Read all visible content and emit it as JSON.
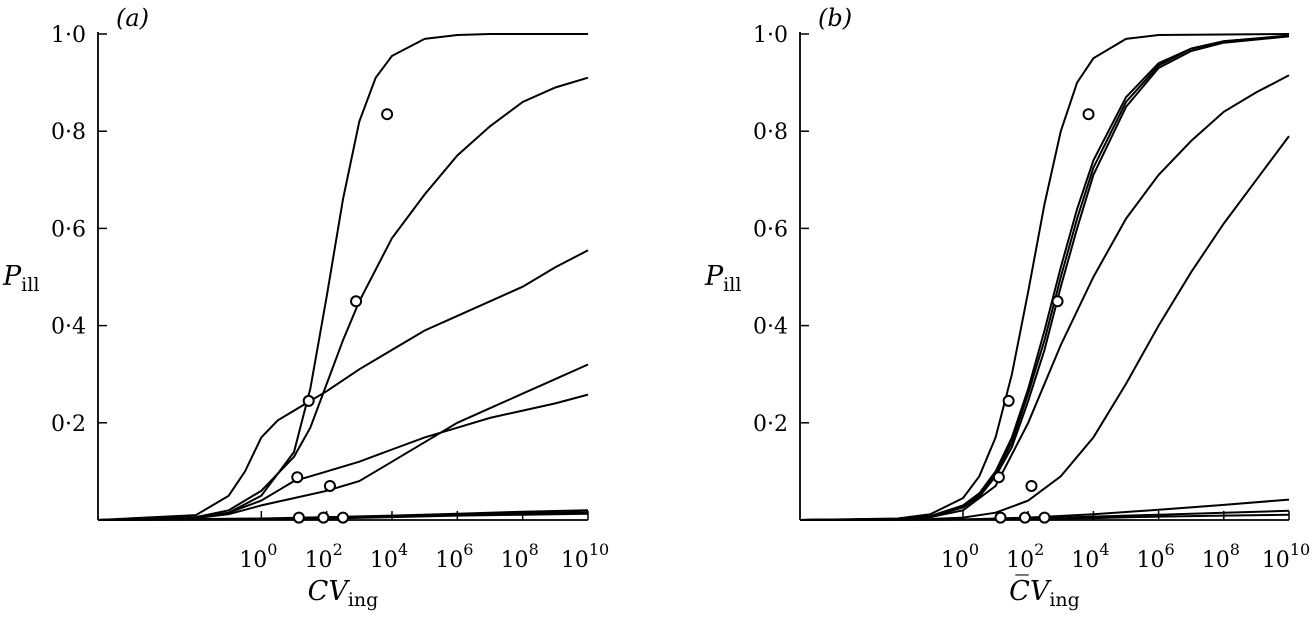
{
  "chart_data": [
    {
      "type": "line",
      "panel_label": "(a)",
      "xlabel": "CV",
      "xlabel_sub": "ing",
      "ylabel": "P",
      "ylabel_sub": "ill",
      "xscale": "log",
      "xlim": [
        1e-05,
        10000000000.0
      ],
      "ylim": [
        0,
        1
      ],
      "y_ticks": [
        {
          "v": 0.2,
          "label": "0·2"
        },
        {
          "v": 0.4,
          "label": "0·4"
        },
        {
          "v": 0.6,
          "label": "0·6"
        },
        {
          "v": 0.8,
          "label": "0·8"
        },
        {
          "v": 1.0,
          "label": "1·0"
        }
      ],
      "x_ticks": [
        {
          "exp": 0,
          "base": "10",
          "sup": "0"
        },
        {
          "exp": 2,
          "base": "10",
          "sup": "2"
        },
        {
          "exp": 4,
          "base": "10",
          "sup": "4"
        },
        {
          "exp": 6,
          "base": "10",
          "sup": "6"
        },
        {
          "exp": 8,
          "base": "10",
          "sup": "8"
        },
        {
          "exp": 10,
          "base": "10",
          "sup": "10"
        }
      ],
      "series": [
        {
          "x_log10": [
            -5,
            -2,
            -1,
            0,
            1,
            1.5,
            2,
            2.5,
            3,
            3.5,
            4,
            5,
            6,
            7,
            8,
            10
          ],
          "y": [
            0,
            0.004,
            0.015,
            0.05,
            0.14,
            0.27,
            0.46,
            0.66,
            0.82,
            0.91,
            0.955,
            0.99,
            0.998,
            1,
            1,
            1
          ]
        },
        {
          "x_log10": [
            -5,
            -2,
            -1,
            0,
            1,
            1.5,
            2,
            2.5,
            3,
            4,
            5,
            6,
            7,
            8,
            9,
            10
          ],
          "y": [
            0,
            0.006,
            0.02,
            0.06,
            0.13,
            0.19,
            0.28,
            0.37,
            0.45,
            0.58,
            0.67,
            0.75,
            0.81,
            0.86,
            0.89,
            0.91
          ]
        },
        {
          "x_log10": [
            -5,
            -2,
            -1,
            -0.5,
            0,
            0.5,
            1,
            1.5,
            2,
            3,
            4,
            5,
            6,
            7,
            8,
            9,
            10
          ],
          "y": [
            0,
            0.01,
            0.05,
            0.1,
            0.17,
            0.205,
            0.225,
            0.245,
            0.265,
            0.31,
            0.35,
            0.39,
            0.42,
            0.45,
            0.48,
            0.52,
            0.555
          ]
        },
        {
          "x_log10": [
            -5,
            -2,
            -1,
            0,
            0.5,
            1,
            1.5,
            2,
            3,
            4,
            5,
            6,
            7,
            8,
            9,
            10
          ],
          "y": [
            0,
            0.005,
            0.015,
            0.04,
            0.06,
            0.08,
            0.09,
            0.1,
            0.12,
            0.145,
            0.17,
            0.19,
            0.21,
            0.225,
            0.24,
            0.258
          ]
        },
        {
          "x_log10": [
            -5,
            -2,
            -1,
            0,
            1,
            2,
            3,
            4,
            5,
            6,
            7,
            8,
            9,
            10
          ],
          "y": [
            0,
            0.004,
            0.012,
            0.03,
            0.045,
            0.06,
            0.08,
            0.12,
            0.16,
            0.2,
            0.23,
            0.26,
            0.29,
            0.32
          ]
        },
        {
          "x_log10": [
            -5,
            0,
            2,
            4,
            6,
            8,
            10
          ],
          "y": [
            0,
            0.001,
            0.003,
            0.006,
            0.009,
            0.011,
            0.013
          ]
        },
        {
          "x_log10": [
            -5,
            0,
            2,
            4,
            6,
            8,
            10
          ],
          "y": [
            0,
            0.002,
            0.004,
            0.007,
            0.011,
            0.014,
            0.016
          ]
        },
        {
          "x_log10": [
            -5,
            0,
            2,
            4,
            6,
            8,
            10
          ],
          "y": [
            0,
            0.003,
            0.006,
            0.009,
            0.013,
            0.017,
            0.02
          ]
        }
      ],
      "points": [
        {
          "x_log10": 3.85,
          "y": 0.835
        },
        {
          "x_log10": 2.9,
          "y": 0.45
        },
        {
          "x_log10": 1.45,
          "y": 0.245
        },
        {
          "x_log10": 2.1,
          "y": 0.07
        },
        {
          "x_log10": 1.1,
          "y": 0.088
        },
        {
          "x_log10": 1.15,
          "y": 0.005
        },
        {
          "x_log10": 1.9,
          "y": 0.005
        },
        {
          "x_log10": 2.5,
          "y": 0.005
        }
      ]
    },
    {
      "type": "line",
      "panel_label": "(b)",
      "xlabel": "C̅V",
      "xlabel_sub": "ing",
      "ylabel": "P",
      "ylabel_sub": "ill",
      "xscale": "log",
      "xlim": [
        1e-05,
        10000000000.0
      ],
      "ylim": [
        0,
        1
      ],
      "y_ticks": [
        {
          "v": 0.2,
          "label": "0·2"
        },
        {
          "v": 0.4,
          "label": "0·4"
        },
        {
          "v": 0.6,
          "label": "0·6"
        },
        {
          "v": 0.8,
          "label": "0·8"
        },
        {
          "v": 1.0,
          "label": "1·0"
        }
      ],
      "x_ticks": [
        {
          "exp": 0,
          "base": "10",
          "sup": "0"
        },
        {
          "exp": 2,
          "base": "10",
          "sup": "2"
        },
        {
          "exp": 4,
          "base": "10",
          "sup": "4"
        },
        {
          "exp": 6,
          "base": "10",
          "sup": "6"
        },
        {
          "exp": 8,
          "base": "10",
          "sup": "8"
        },
        {
          "exp": 10,
          "base": "10",
          "sup": "10"
        }
      ],
      "series": [
        {
          "x_log10": [
            -5,
            -2,
            -1,
            0,
            0.5,
            1,
            1.5,
            2,
            2.5,
            3,
            3.5,
            4,
            5,
            6,
            10
          ],
          "y": [
            0,
            0.003,
            0.012,
            0.045,
            0.09,
            0.17,
            0.3,
            0.47,
            0.65,
            0.8,
            0.9,
            0.95,
            0.99,
            0.998,
            1
          ]
        },
        {
          "x_log10": [
            -5,
            -2,
            -1,
            0,
            0.5,
            1,
            1.5,
            2,
            2.5,
            3,
            3.5,
            4,
            5,
            6,
            7,
            8,
            10
          ],
          "y": [
            0,
            0.002,
            0.008,
            0.03,
            0.055,
            0.1,
            0.17,
            0.27,
            0.39,
            0.52,
            0.64,
            0.74,
            0.87,
            0.94,
            0.97,
            0.985,
            0.997
          ]
        },
        {
          "x_log10": [
            -5,
            -2,
            -1,
            0,
            0.5,
            1,
            1.5,
            2,
            2.5,
            3,
            3.5,
            4,
            5,
            6,
            7,
            8,
            10
          ],
          "y": [
            0,
            0.002,
            0.007,
            0.028,
            0.052,
            0.095,
            0.16,
            0.26,
            0.37,
            0.5,
            0.62,
            0.725,
            0.86,
            0.935,
            0.97,
            0.985,
            0.996
          ]
        },
        {
          "x_log10": [
            -5,
            -2,
            -1,
            0,
            0.5,
            1,
            1.5,
            2,
            2.5,
            3,
            3.5,
            4,
            5,
            6,
            7,
            8,
            10
          ],
          "y": [
            0,
            0.002,
            0.007,
            0.026,
            0.048,
            0.09,
            0.15,
            0.245,
            0.35,
            0.48,
            0.6,
            0.71,
            0.85,
            0.93,
            0.965,
            0.982,
            0.995
          ]
        },
        {
          "x_log10": [
            -5,
            -2,
            -1,
            0,
            1,
            2,
            3,
            4,
            5,
            6,
            7,
            8,
            9,
            10
          ],
          "y": [
            0,
            0.002,
            0.006,
            0.02,
            0.07,
            0.2,
            0.36,
            0.5,
            0.62,
            0.71,
            0.78,
            0.84,
            0.88,
            0.915
          ]
        },
        {
          "x_log10": [
            -5,
            -2,
            -1,
            0,
            1,
            2,
            3,
            4,
            5,
            6,
            7,
            8,
            9,
            10
          ],
          "y": [
            0,
            0.001,
            0.002,
            0.005,
            0.015,
            0.04,
            0.09,
            0.17,
            0.28,
            0.4,
            0.51,
            0.61,
            0.7,
            0.79
          ]
        },
        {
          "x_log10": [
            -5,
            0,
            2,
            4,
            6,
            8,
            10
          ],
          "y": [
            0,
            0.001,
            0.005,
            0.012,
            0.021,
            0.031,
            0.042
          ]
        },
        {
          "x_log10": [
            -5,
            0,
            2,
            4,
            6,
            8,
            10
          ],
          "y": [
            0,
            0.001,
            0.003,
            0.007,
            0.011,
            0.015,
            0.019
          ]
        },
        {
          "x_log10": [
            -5,
            0,
            2,
            4,
            6,
            8,
            10
          ],
          "y": [
            0,
            0.001,
            0.002,
            0.004,
            0.007,
            0.009,
            0.011
          ]
        }
      ],
      "points": [
        {
          "x_log10": 3.85,
          "y": 0.835
        },
        {
          "x_log10": 2.9,
          "y": 0.45
        },
        {
          "x_log10": 1.4,
          "y": 0.245
        },
        {
          "x_log10": 2.1,
          "y": 0.07
        },
        {
          "x_log10": 1.1,
          "y": 0.088
        },
        {
          "x_log10": 1.15,
          "y": 0.005
        },
        {
          "x_log10": 1.9,
          "y": 0.005
        },
        {
          "x_log10": 2.5,
          "y": 0.005
        }
      ]
    }
  ]
}
